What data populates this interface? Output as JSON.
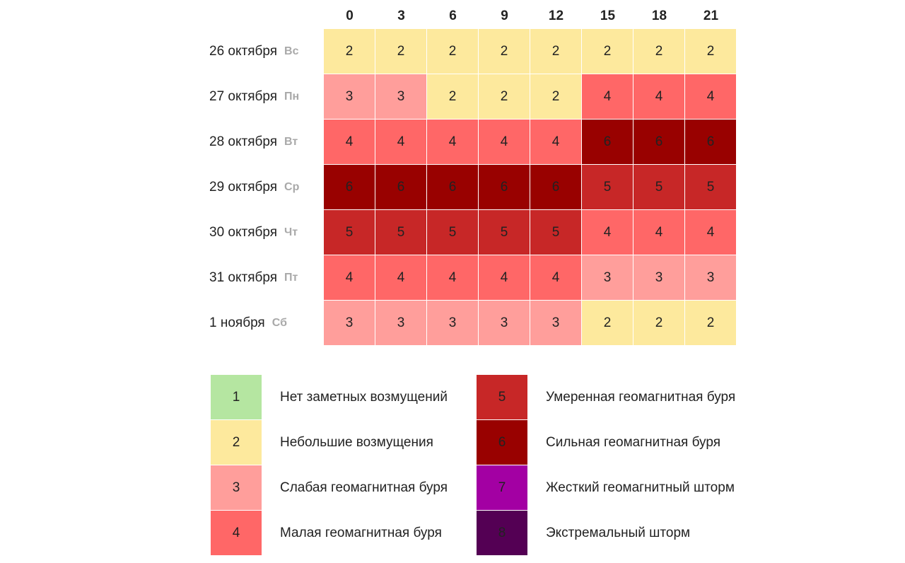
{
  "chart_data": {
    "type": "heatmap",
    "x": [
      "0",
      "3",
      "6",
      "9",
      "12",
      "15",
      "18",
      "21"
    ],
    "rows": [
      {
        "date": "26 октября",
        "weekday": "Вс",
        "values": [
          2,
          2,
          2,
          2,
          2,
          2,
          2,
          2
        ]
      },
      {
        "date": "27 октября",
        "weekday": "Пн",
        "values": [
          3,
          3,
          2,
          2,
          2,
          4,
          4,
          4
        ]
      },
      {
        "date": "28 октября",
        "weekday": "Вт",
        "values": [
          4,
          4,
          4,
          4,
          4,
          6,
          6,
          6
        ]
      },
      {
        "date": "29 октября",
        "weekday": "Ср",
        "values": [
          6,
          6,
          6,
          6,
          6,
          5,
          5,
          5
        ]
      },
      {
        "date": "30 октября",
        "weekday": "Чт",
        "values": [
          5,
          5,
          5,
          5,
          5,
          4,
          4,
          4
        ]
      },
      {
        "date": "31 октября",
        "weekday": "Пт",
        "values": [
          4,
          4,
          4,
          4,
          4,
          3,
          3,
          3
        ]
      },
      {
        "date": "1 ноября",
        "weekday": "Сб",
        "values": [
          3,
          3,
          3,
          3,
          3,
          2,
          2,
          2
        ]
      }
    ],
    "scale": [
      {
        "level": "1",
        "label": "Нет заметных возмущений",
        "color": "#b5e6a1"
      },
      {
        "level": "2",
        "label": "Небольшие возмущения",
        "color": "#fde99d"
      },
      {
        "level": "3",
        "label": "Слабая геомагнитная буря",
        "color": "#ff9e9b"
      },
      {
        "level": "4",
        "label": "Малая геомагнитная буря",
        "color": "#ff6767"
      },
      {
        "level": "5",
        "label": "Умеренная геомагнитная буря",
        "color": "#c72727"
      },
      {
        "level": "6",
        "label": "Сильная геомагнитная буря",
        "color": "#990100"
      },
      {
        "level": "7",
        "label": "Жесткий геомагнитный шторм",
        "color": "#a300a3"
      },
      {
        "level": "8",
        "label": "Экстремальный шторм",
        "color": "#540054"
      }
    ]
  }
}
